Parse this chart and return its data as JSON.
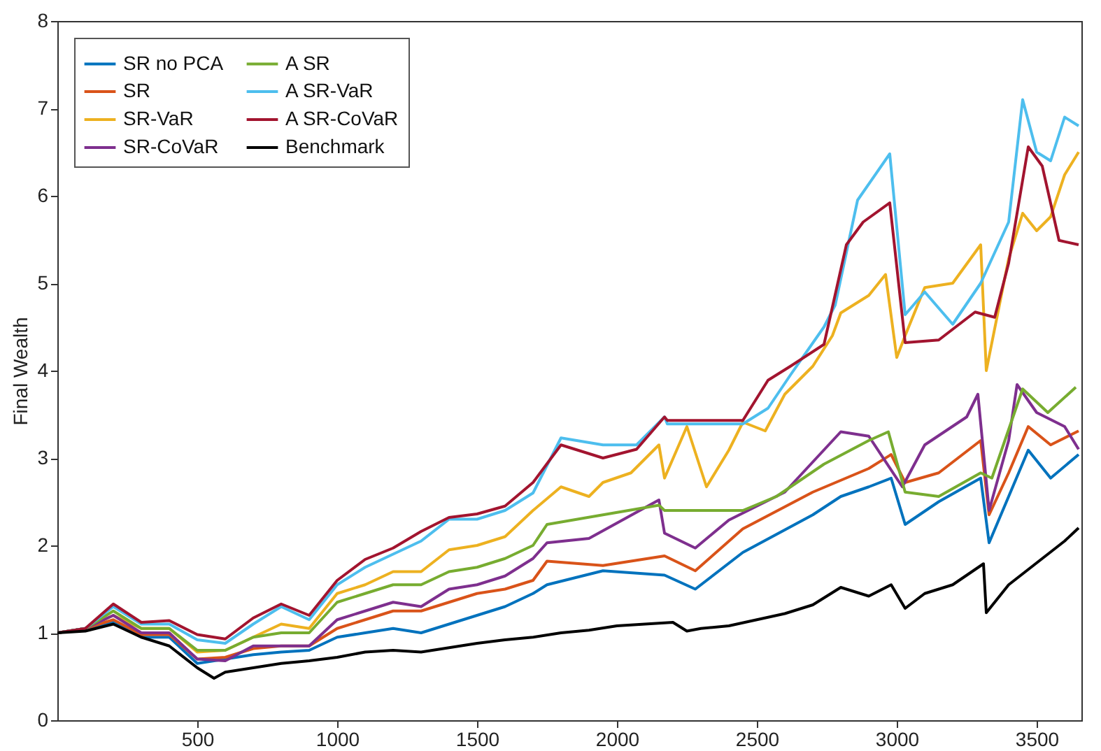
{
  "chart_data": {
    "type": "line",
    "ylabel": "Final Wealth",
    "xlim": [
      0,
      3660
    ],
    "ylim": [
      0,
      8
    ],
    "xticks": [
      500,
      1000,
      1500,
      2000,
      2500,
      3000,
      3500
    ],
    "yticks": [
      0,
      1,
      2,
      3,
      4,
      5,
      6,
      7,
      8
    ],
    "grid": false,
    "legend": "top left",
    "line_style": "solid",
    "marker": "none",
    "series": [
      {
        "name": "SR no PCA",
        "color": "#0072bd",
        "x": [
          0,
          100,
          200,
          300,
          400,
          500,
          600,
          700,
          800,
          900,
          1000,
          1100,
          1200,
          1300,
          1400,
          1500,
          1600,
          1700,
          1750,
          1950,
          2170,
          2280,
          2450,
          2700,
          2800,
          2900,
          2980,
          3030,
          3150,
          3300,
          3330,
          3400,
          3470,
          3550,
          3650
        ],
        "values": [
          1.0,
          1.05,
          1.12,
          0.95,
          0.95,
          0.65,
          0.7,
          0.75,
          0.78,
          0.8,
          0.95,
          1.0,
          1.05,
          1.0,
          1.1,
          1.2,
          1.3,
          1.45,
          1.55,
          1.71,
          1.66,
          1.5,
          1.92,
          2.35,
          2.56,
          2.67,
          2.77,
          2.24,
          2.5,
          2.77,
          2.03,
          2.56,
          3.09,
          2.77,
          3.04
        ]
      },
      {
        "name": "SR",
        "color": "#d95319",
        "x": [
          0,
          100,
          200,
          300,
          400,
          500,
          600,
          700,
          800,
          900,
          1000,
          1100,
          1200,
          1300,
          1400,
          1500,
          1600,
          1700,
          1750,
          1950,
          2170,
          2280,
          2450,
          2700,
          2900,
          2980,
          3030,
          3150,
          3300,
          3330,
          3400,
          3470,
          3550,
          3650
        ],
        "values": [
          1.0,
          1.05,
          1.15,
          0.98,
          0.98,
          0.7,
          0.72,
          0.82,
          0.85,
          0.85,
          1.05,
          1.15,
          1.25,
          1.25,
          1.35,
          1.45,
          1.5,
          1.6,
          1.82,
          1.77,
          1.88,
          1.71,
          2.19,
          2.61,
          2.88,
          3.04,
          2.72,
          2.83,
          3.2,
          2.35,
          2.83,
          3.36,
          3.15,
          3.31
        ]
      },
      {
        "name": "SR-VaR",
        "color": "#edb120",
        "x": [
          0,
          100,
          200,
          300,
          400,
          500,
          600,
          700,
          800,
          900,
          1000,
          1100,
          1200,
          1300,
          1400,
          1500,
          1600,
          1700,
          1800,
          1900,
          1950,
          2050,
          2150,
          2170,
          2250,
          2320,
          2400,
          2450,
          2530,
          2600,
          2700,
          2770,
          2800,
          2900,
          2960,
          3000,
          3030,
          3100,
          3200,
          3300,
          3320,
          3400,
          3450,
          3500,
          3550,
          3600,
          3650
        ],
        "values": [
          1.0,
          1.05,
          1.2,
          1.05,
          1.05,
          0.78,
          0.8,
          0.95,
          1.1,
          1.05,
          1.45,
          1.55,
          1.7,
          1.7,
          1.95,
          2.0,
          2.1,
          2.4,
          2.67,
          2.56,
          2.72,
          2.83,
          3.15,
          2.77,
          3.36,
          2.67,
          3.09,
          3.41,
          3.31,
          3.73,
          4.05,
          4.4,
          4.66,
          4.86,
          5.1,
          4.15,
          4.4,
          4.95,
          5.0,
          5.44,
          4.0,
          5.28,
          5.8,
          5.6,
          5.76,
          6.24,
          6.5
        ]
      },
      {
        "name": "SR-CoVaR",
        "color": "#7e2f8e",
        "x": [
          0,
          100,
          200,
          300,
          400,
          500,
          600,
          700,
          800,
          900,
          1000,
          1100,
          1200,
          1300,
          1400,
          1500,
          1600,
          1700,
          1750,
          1900,
          2150,
          2170,
          2280,
          2400,
          2600,
          2800,
          2900,
          3020,
          3100,
          3250,
          3290,
          3330,
          3400,
          3430,
          3500,
          3600,
          3650
        ],
        "values": [
          1.0,
          1.05,
          1.2,
          1.0,
          1.0,
          0.7,
          0.68,
          0.85,
          0.85,
          0.85,
          1.15,
          1.25,
          1.35,
          1.3,
          1.5,
          1.55,
          1.65,
          1.85,
          2.03,
          2.08,
          2.52,
          2.14,
          1.97,
          2.29,
          2.61,
          3.3,
          3.25,
          2.67,
          3.15,
          3.47,
          3.73,
          2.4,
          3.2,
          3.84,
          3.52,
          3.36,
          3.1
        ]
      },
      {
        "name": "A SR",
        "color": "#77ac30",
        "x": [
          0,
          100,
          200,
          300,
          400,
          500,
          600,
          700,
          800,
          900,
          1000,
          1100,
          1200,
          1300,
          1400,
          1500,
          1600,
          1700,
          1750,
          1950,
          2150,
          2170,
          2450,
          2570,
          2740,
          2900,
          2970,
          3030,
          3150,
          3300,
          3340,
          3450,
          3540,
          3640
        ],
        "values": [
          1.0,
          1.05,
          1.25,
          1.05,
          1.05,
          0.8,
          0.8,
          0.95,
          1.0,
          1.0,
          1.35,
          1.45,
          1.55,
          1.55,
          1.7,
          1.75,
          1.85,
          2.0,
          2.24,
          2.35,
          2.46,
          2.4,
          2.4,
          2.56,
          2.93,
          3.2,
          3.3,
          2.61,
          2.56,
          2.83,
          2.77,
          3.79,
          3.52,
          3.81
        ]
      },
      {
        "name": "A SR-VaR",
        "color": "#4dbeee",
        "x": [
          0,
          100,
          200,
          300,
          400,
          500,
          600,
          700,
          800,
          900,
          1000,
          1100,
          1200,
          1300,
          1400,
          1500,
          1600,
          1700,
          1800,
          1950,
          2070,
          2170,
          2180,
          2450,
          2540,
          2620,
          2740,
          2780,
          2860,
          2975,
          3030,
          3100,
          3200,
          3300,
          3400,
          3450,
          3500,
          3550,
          3600,
          3650
        ],
        "values": [
          1.0,
          1.05,
          1.3,
          1.1,
          1.1,
          0.92,
          0.88,
          1.1,
          1.3,
          1.15,
          1.55,
          1.75,
          1.9,
          2.05,
          2.3,
          2.3,
          2.4,
          2.6,
          3.23,
          3.15,
          3.15,
          3.47,
          3.39,
          3.39,
          3.57,
          3.95,
          4.5,
          4.75,
          5.95,
          6.48,
          4.64,
          4.9,
          4.53,
          5.0,
          5.7,
          7.1,
          6.5,
          6.4,
          6.9,
          6.8
        ]
      },
      {
        "name": "A SR-CoVaR",
        "color": "#a2142f",
        "x": [
          0,
          100,
          200,
          300,
          400,
          500,
          600,
          700,
          800,
          900,
          1000,
          1100,
          1200,
          1300,
          1400,
          1500,
          1600,
          1700,
          1800,
          1950,
          2070,
          2170,
          2180,
          2450,
          2540,
          2620,
          2740,
          2820,
          2880,
          2975,
          3030,
          3150,
          3280,
          3350,
          3400,
          3470,
          3520,
          3580,
          3650
        ],
        "values": [
          1.0,
          1.05,
          1.33,
          1.12,
          1.14,
          0.98,
          0.93,
          1.17,
          1.33,
          1.2,
          1.6,
          1.84,
          1.97,
          2.16,
          2.32,
          2.36,
          2.45,
          2.72,
          3.15,
          3.0,
          3.1,
          3.47,
          3.43,
          3.43,
          3.89,
          4.05,
          4.3,
          5.44,
          5.7,
          5.92,
          4.32,
          4.35,
          4.67,
          4.61,
          5.23,
          6.56,
          6.34,
          5.49,
          5.44
        ]
      },
      {
        "name": "Benchmark",
        "color": "#000000",
        "x": [
          0,
          100,
          200,
          300,
          400,
          500,
          560,
          600,
          700,
          800,
          900,
          1000,
          1100,
          1200,
          1300,
          1400,
          1500,
          1600,
          1700,
          1800,
          1900,
          2000,
          2100,
          2200,
          2250,
          2300,
          2400,
          2500,
          2600,
          2700,
          2800,
          2900,
          2980,
          3030,
          3100,
          3200,
          3310,
          3320,
          3400,
          3500,
          3600,
          3650
        ],
        "values": [
          1.0,
          1.02,
          1.1,
          0.95,
          0.85,
          0.6,
          0.48,
          0.55,
          0.6,
          0.65,
          0.68,
          0.72,
          0.78,
          0.8,
          0.78,
          0.83,
          0.88,
          0.92,
          0.95,
          1.0,
          1.03,
          1.08,
          1.1,
          1.12,
          1.02,
          1.05,
          1.08,
          1.15,
          1.22,
          1.32,
          1.52,
          1.42,
          1.55,
          1.28,
          1.45,
          1.55,
          1.79,
          1.23,
          1.55,
          1.8,
          2.05,
          2.2
        ]
      }
    ]
  }
}
